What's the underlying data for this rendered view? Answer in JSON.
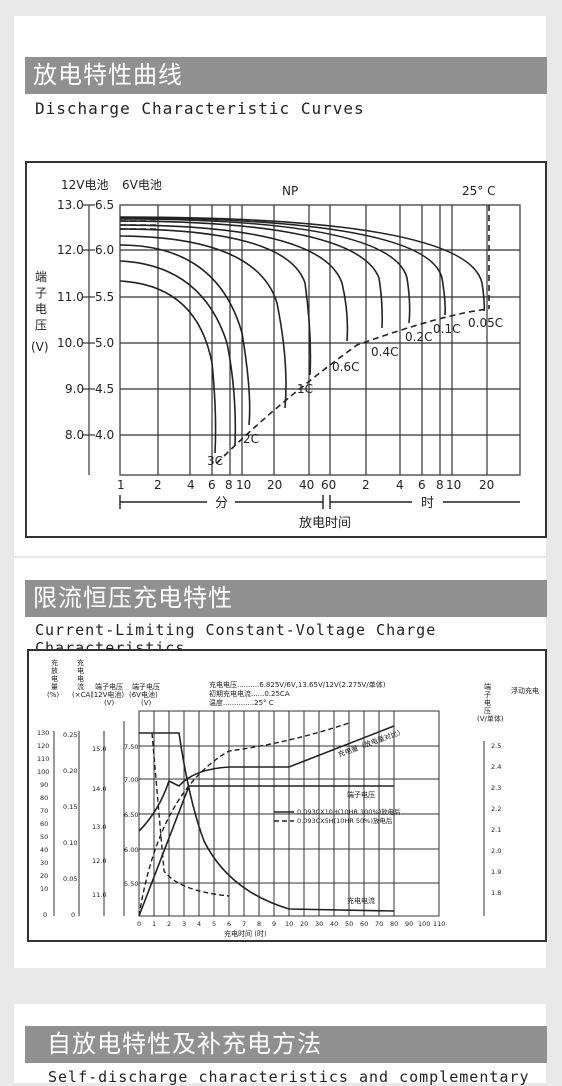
{
  "sections": [
    {
      "title": "放电特性曲线",
      "subtitle": "Discharge Characteristic Curves"
    },
    {
      "title": "限流恒压充电特性",
      "subtitle": "Current-Limiting Constant-Voltage Charge Characteristics"
    },
    {
      "title": "自放电特性及补充电方法",
      "subtitle": "Self-discharge characteristics and complementary"
    }
  ],
  "discharge_chart": {
    "battery_12v": "12V电池",
    "battery_6v": "6V电池",
    "model": "NP",
    "temperature": "25° C",
    "y_axis_label": [
      "端",
      "子",
      "电",
      "压"
    ],
    "y_unit": "(V)",
    "y_ticks_12v": [
      "13.0",
      "12.0",
      "11.0",
      "10.0",
      "9.0",
      "8.0"
    ],
    "y_ticks_6v": [
      "6.5",
      "6.0",
      "5.5",
      "5.0",
      "4.5",
      "4.0"
    ],
    "x_ticks_min": [
      "1",
      "2",
      "4",
      "6",
      "8",
      "10",
      "20",
      "40",
      "60"
    ],
    "x_ticks_hr": [
      "2",
      "4",
      "6",
      "8",
      "10",
      "20"
    ],
    "minutes_label": "分",
    "hours_label": "时",
    "x_label": "放电时间",
    "curve_labels": [
      "3C",
      "2C",
      "1C",
      "0.6C",
      "0.4C",
      "0.2C",
      "0.1C",
      "0.05C"
    ]
  },
  "charge_chart": {
    "y1_label": [
      "充",
      "放",
      "电",
      "量",
      "(%)"
    ],
    "y2_label": [
      "充",
      "电",
      "电",
      "流",
      "(×CA)"
    ],
    "y3_label": "端子电压",
    "y3_sub": "(12V电池)",
    "y3_unit": "(V)",
    "y4_label": "端子电压",
    "y4_sub": "(6V电池)",
    "y4_unit": "(V)",
    "right_label": [
      "端",
      "子",
      "电",
      "压",
      "(V/单体)"
    ],
    "float_label": "浮动充电",
    "info_lines": [
      "充电电压..........6.825V/6V,13.65V/12V(2.275V/单体)",
      "初期充电电流......0.25CA",
      "温度..............25° C"
    ],
    "y1_ticks": [
      "130",
      "120",
      "110",
      "100",
      "90",
      "80",
      "70",
      "60",
      "50",
      "40",
      "30",
      "20",
      "10",
      "0"
    ],
    "y2_ticks": [
      "0.25",
      "0.20",
      "0.15",
      "0.10",
      "0.05",
      "0"
    ],
    "y3_ticks": [
      "15.0",
      "14.0",
      "13.0",
      "12.0",
      "11.0"
    ],
    "y4_ticks": [
      "7.50",
      "7.00",
      "6.50",
      "6.00",
      "5.50"
    ],
    "right_ticks": [
      "2.5",
      "2.4",
      "2.3",
      "2.2",
      "2.1",
      "2.0",
      "1.9",
      "1.8"
    ],
    "x_ticks": [
      "0",
      "1",
      "2",
      "3",
      "4",
      "5",
      "6",
      "7",
      "8",
      "9",
      "10",
      "20",
      "30",
      "40",
      "50",
      "60",
      "70",
      "80",
      "90",
      "100",
      "110"
    ],
    "x_label": "充电时间 (时)",
    "curve_charged": "充电量（放电量对比）",
    "curve_voltage": "端子电压",
    "curve_current": "充电电流",
    "legend": [
      "0.093CX10H(10HR 100%)放电后",
      "0.093CX5H(10HR 50%)放电后"
    ]
  }
}
